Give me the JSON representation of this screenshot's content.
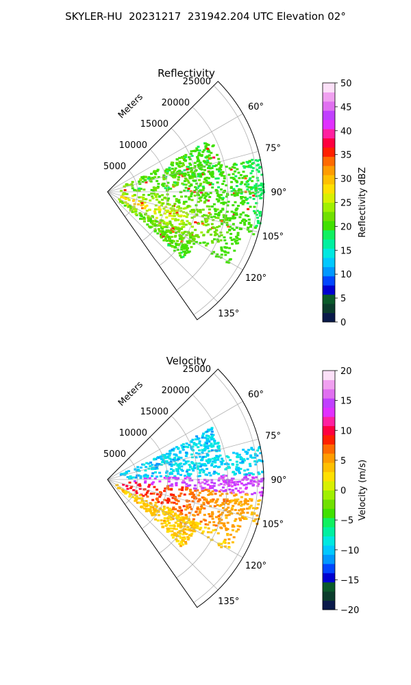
{
  "figure": {
    "suptitle": "SKYLER-HU  20231217  231942.204 UTC Elevation 02°"
  },
  "chart_data": [
    {
      "type": "polar-sector-ppi",
      "title": "Reflectivity",
      "range_label": "Meters",
      "range_ticks": [
        5000,
        10000,
        15000,
        20000,
        25000
      ],
      "range_tick_labels": [
        "5000",
        "10000",
        "15000",
        "20000",
        "25000"
      ],
      "azimuth_range": [
        45,
        145
      ],
      "azimuth_ticks": [
        60,
        75,
        90,
        105,
        120,
        135
      ],
      "azimuth_tick_labels": [
        "60°",
        "75°",
        "90°",
        "105°",
        "120°",
        "135°"
      ],
      "max_range": 26000,
      "grid": true,
      "colorbar": {
        "label": "Reflectivity dBZ",
        "range": [
          0,
          50
        ],
        "ticks": [
          0,
          5,
          10,
          15,
          20,
          25,
          30,
          35,
          40,
          45,
          50
        ],
        "tick_labels": [
          "0",
          "5",
          "10",
          "15",
          "20",
          "25",
          "30",
          "35",
          "40",
          "45",
          "50"
        ],
        "colors": [
          "#0a1a4a",
          "#0b3d2c",
          "#0a5a2a",
          "#0000d0",
          "#0046ff",
          "#0098ff",
          "#00c8ff",
          "#00e8e0",
          "#00f0a0",
          "#10f060",
          "#40e000",
          "#70e000",
          "#a0f000",
          "#d8f000",
          "#ffe000",
          "#ffc000",
          "#ff9c00",
          "#ff6a00",
          "#ff2000",
          "#ff0040",
          "#ff20a0",
          "#e030ff",
          "#c040ff",
          "#e070f0",
          "#f0a0f0",
          "#fce0f8"
        ]
      },
      "field_value_range": [
        15,
        38
      ]
    },
    {
      "type": "polar-sector-ppi",
      "title": "Velocity",
      "range_label": "Meters",
      "range_ticks": [
        5000,
        10000,
        15000,
        20000,
        25000
      ],
      "range_tick_labels": [
        "5000",
        "10000",
        "15000",
        "20000",
        "25000"
      ],
      "azimuth_range": [
        45,
        145
      ],
      "azimuth_ticks": [
        60,
        75,
        90,
        105,
        120,
        135
      ],
      "azimuth_tick_labels": [
        "60°",
        "75°",
        "90°",
        "105°",
        "120°",
        "135°"
      ],
      "max_range": 26000,
      "grid": true,
      "colorbar": {
        "label": "Velocity (m/s)",
        "range": [
          -20,
          20
        ],
        "ticks": [
          -20,
          -15,
          -10,
          -5,
          0,
          5,
          10,
          15,
          20
        ],
        "tick_labels": [
          "−20",
          "−15",
          "−10",
          "−5",
          "0",
          "5",
          "10",
          "15",
          "20"
        ],
        "colors": [
          "#0a1a4a",
          "#0b3d2c",
          "#0a5a2a",
          "#0000d0",
          "#0046ff",
          "#0098ff",
          "#00c8ff",
          "#00e8e0",
          "#00f0a0",
          "#10f060",
          "#40e000",
          "#70e000",
          "#a0f000",
          "#d8f000",
          "#ffe000",
          "#ffc000",
          "#ff9c00",
          "#ff6a00",
          "#ff2000",
          "#ff0040",
          "#ff20a0",
          "#e030ff",
          "#c040ff",
          "#e070f0",
          "#f0a0f0",
          "#fce0f8"
        ]
      },
      "field_value_range": [
        -12,
        16
      ]
    }
  ]
}
